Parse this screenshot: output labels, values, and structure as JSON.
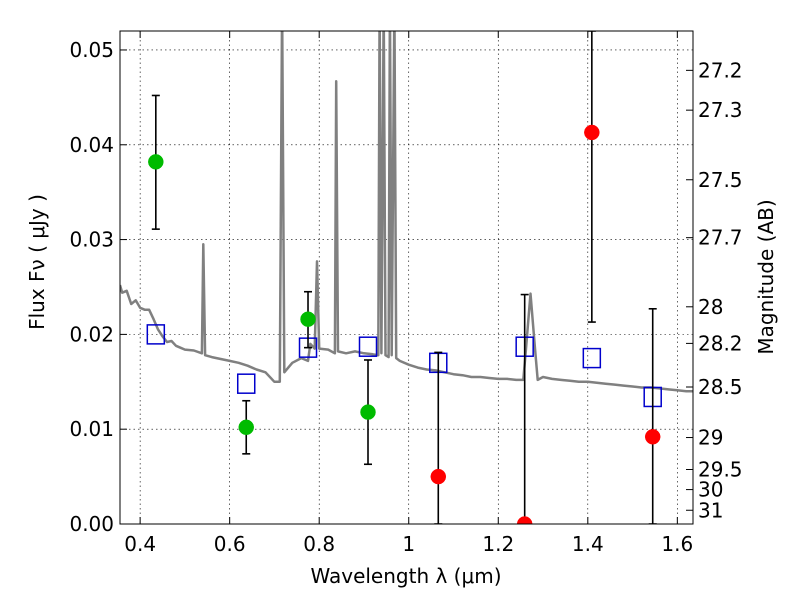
{
  "chart_data": {
    "type": "scatter",
    "xlabel": "Wavelength  λ (μm)",
    "ylabel": "Flux  Fν  ( μJy )",
    "ylabel_right": "Magnitude (AB)",
    "xlim": [
      0.355,
      1.635
    ],
    "ylim": [
      0.0,
      0.052
    ],
    "grid": true,
    "x_ticks": [
      0.4,
      0.6,
      0.8,
      1.0,
      1.2,
      1.4,
      1.6
    ],
    "x_tick_labels": [
      "0.4",
      "0.6",
      "0.8",
      "1",
      "1.2",
      "1.4",
      "1.6"
    ],
    "y_ticks": [
      0.0,
      0.01,
      0.02,
      0.03,
      0.04,
      0.05
    ],
    "y_tick_labels": [
      "0.00",
      "0.01",
      "0.02",
      "0.03",
      "0.04",
      "0.05"
    ],
    "right_ticks": [
      {
        "label": "27.2",
        "flux": 0.04785
      },
      {
        "label": "27.3",
        "flux": 0.04365
      },
      {
        "label": "27.5",
        "flux": 0.03631
      },
      {
        "label": "27.7",
        "flux": 0.0302
      },
      {
        "label": "28",
        "flux": 0.02291
      },
      {
        "label": "28.2",
        "flux": 0.01905
      },
      {
        "label": "28.5",
        "flux": 0.01445
      },
      {
        "label": "29",
        "flux": 0.00912
      },
      {
        "label": "29.5",
        "flux": 0.00575
      },
      {
        "label": "30",
        "flux": 0.00363
      },
      {
        "label": "31",
        "flux": 0.00145
      }
    ],
    "series": [
      {
        "type": "error_points",
        "color": "#00bb00",
        "points": [
          {
            "x": 0.435,
            "y": 0.0382,
            "lo": 0.0311,
            "hi": 0.0452
          },
          {
            "x": 0.637,
            "y": 0.0102,
            "lo": 0.0074,
            "hi": 0.013
          },
          {
            "x": 0.775,
            "y": 0.0216,
            "lo": 0.0186,
            "hi": 0.0245
          },
          {
            "x": 0.909,
            "y": 0.0118,
            "lo": 0.0063,
            "hi": 0.0173
          }
        ]
      },
      {
        "type": "error_points",
        "color": "#ff0000",
        "points": [
          {
            "x": 1.066,
            "y": 0.005,
            "lo": 0.0,
            "hi": 0.0181
          },
          {
            "x": 1.259,
            "y": 0.0,
            "lo": 0.0,
            "hi": 0.0242
          },
          {
            "x": 1.409,
            "y": 0.0413,
            "lo": 0.0213,
            "hi": 0.052
          },
          {
            "x": 1.545,
            "y": 0.0092,
            "lo": 0.0,
            "hi": 0.0227
          }
        ]
      },
      {
        "type": "model_squares",
        "color": "#0000cc",
        "points": [
          {
            "x": 0.435,
            "y": 0.02
          },
          {
            "x": 0.637,
            "y": 0.0148
          },
          {
            "x": 0.775,
            "y": 0.0186
          },
          {
            "x": 0.909,
            "y": 0.0187
          },
          {
            "x": 1.066,
            "y": 0.017
          },
          {
            "x": 1.259,
            "y": 0.0187
          },
          {
            "x": 1.409,
            "y": 0.0175
          },
          {
            "x": 1.545,
            "y": 0.0134
          }
        ]
      },
      {
        "type": "line",
        "color": "#808080",
        "points": [
          [
            0.355,
            0.0252
          ],
          [
            0.36,
            0.0244
          ],
          [
            0.37,
            0.0246
          ],
          [
            0.38,
            0.0232
          ],
          [
            0.39,
            0.0236
          ],
          [
            0.4,
            0.0228
          ],
          [
            0.41,
            0.0226
          ],
          [
            0.42,
            0.0226
          ],
          [
            0.43,
            0.0216
          ],
          [
            0.44,
            0.0205
          ],
          [
            0.45,
            0.0198
          ],
          [
            0.46,
            0.0192
          ],
          [
            0.47,
            0.0193
          ],
          [
            0.48,
            0.0188
          ],
          [
            0.49,
            0.0186
          ],
          [
            0.5,
            0.0184
          ],
          [
            0.52,
            0.0183
          ],
          [
            0.538,
            0.018
          ],
          [
            0.541,
            0.0295
          ],
          [
            0.545,
            0.0178
          ],
          [
            0.56,
            0.0176
          ],
          [
            0.58,
            0.0174
          ],
          [
            0.6,
            0.0172
          ],
          [
            0.62,
            0.017
          ],
          [
            0.64,
            0.0167
          ],
          [
            0.66,
            0.0163
          ],
          [
            0.68,
            0.016
          ],
          [
            0.7,
            0.015
          ],
          [
            0.712,
            0.015
          ],
          [
            0.717,
            0.055
          ],
          [
            0.722,
            0.016
          ],
          [
            0.74,
            0.017
          ],
          [
            0.76,
            0.0175
          ],
          [
            0.775,
            0.0172
          ],
          [
            0.78,
            0.019
          ],
          [
            0.79,
            0.0185
          ],
          [
            0.795,
            0.0277
          ],
          [
            0.8,
            0.0185
          ],
          [
            0.82,
            0.0184
          ],
          [
            0.835,
            0.018
          ],
          [
            0.838,
            0.0467
          ],
          [
            0.842,
            0.0182
          ],
          [
            0.86,
            0.018
          ],
          [
            0.88,
            0.0182
          ],
          [
            0.9,
            0.018
          ],
          [
            0.92,
            0.0179
          ],
          [
            0.932,
            0.0178
          ],
          [
            0.935,
            0.055
          ],
          [
            0.939,
            0.018
          ],
          [
            0.944,
            0.055
          ],
          [
            0.948,
            0.0178
          ],
          [
            0.955,
            0.0176
          ],
          [
            0.958,
            0.055
          ],
          [
            0.962,
            0.0178
          ],
          [
            0.968,
            0.055
          ],
          [
            0.972,
            0.0175
          ],
          [
            0.98,
            0.0172
          ],
          [
            1.0,
            0.0168
          ],
          [
            1.02,
            0.0165
          ],
          [
            1.04,
            0.0163
          ],
          [
            1.06,
            0.0162
          ],
          [
            1.08,
            0.016
          ],
          [
            1.1,
            0.0158
          ],
          [
            1.12,
            0.0157
          ],
          [
            1.14,
            0.0155
          ],
          [
            1.16,
            0.0155
          ],
          [
            1.18,
            0.0154
          ],
          [
            1.2,
            0.0153
          ],
          [
            1.22,
            0.0153
          ],
          [
            1.24,
            0.0152
          ],
          [
            1.256,
            0.0152
          ],
          [
            1.262,
            0.0185
          ],
          [
            1.272,
            0.0243
          ],
          [
            1.282,
            0.0185
          ],
          [
            1.288,
            0.0152
          ],
          [
            1.3,
            0.0155
          ],
          [
            1.32,
            0.0153
          ],
          [
            1.34,
            0.0152
          ],
          [
            1.36,
            0.0151
          ],
          [
            1.38,
            0.015
          ],
          [
            1.4,
            0.015
          ],
          [
            1.42,
            0.0149
          ],
          [
            1.44,
            0.0148
          ],
          [
            1.46,
            0.0147
          ],
          [
            1.48,
            0.0146
          ],
          [
            1.5,
            0.0145
          ],
          [
            1.52,
            0.0144
          ],
          [
            1.54,
            0.0144
          ],
          [
            1.56,
            0.0143
          ],
          [
            1.58,
            0.0142
          ],
          [
            1.6,
            0.0141
          ],
          [
            1.62,
            0.014
          ],
          [
            1.635,
            0.014
          ]
        ]
      }
    ]
  }
}
